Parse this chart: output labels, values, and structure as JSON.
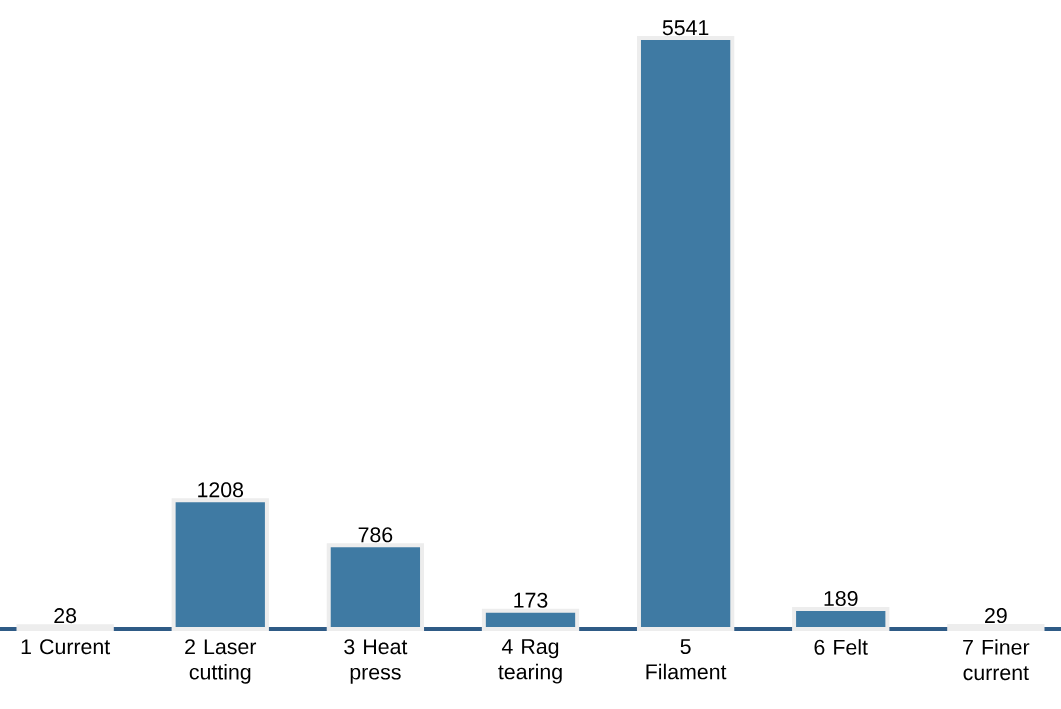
{
  "chart_data": {
    "type": "bar",
    "categories": [
      "1 Current",
      "2 Laser cutting",
      "3 Heat press",
      "4 Rag tearing",
      "5 Filament",
      "6 Felt",
      "7 Finer current"
    ],
    "values": [
      28,
      1208,
      786,
      173,
      5541,
      189,
      29
    ],
    "color": "#3f7aa3",
    "data_labels": true
  }
}
